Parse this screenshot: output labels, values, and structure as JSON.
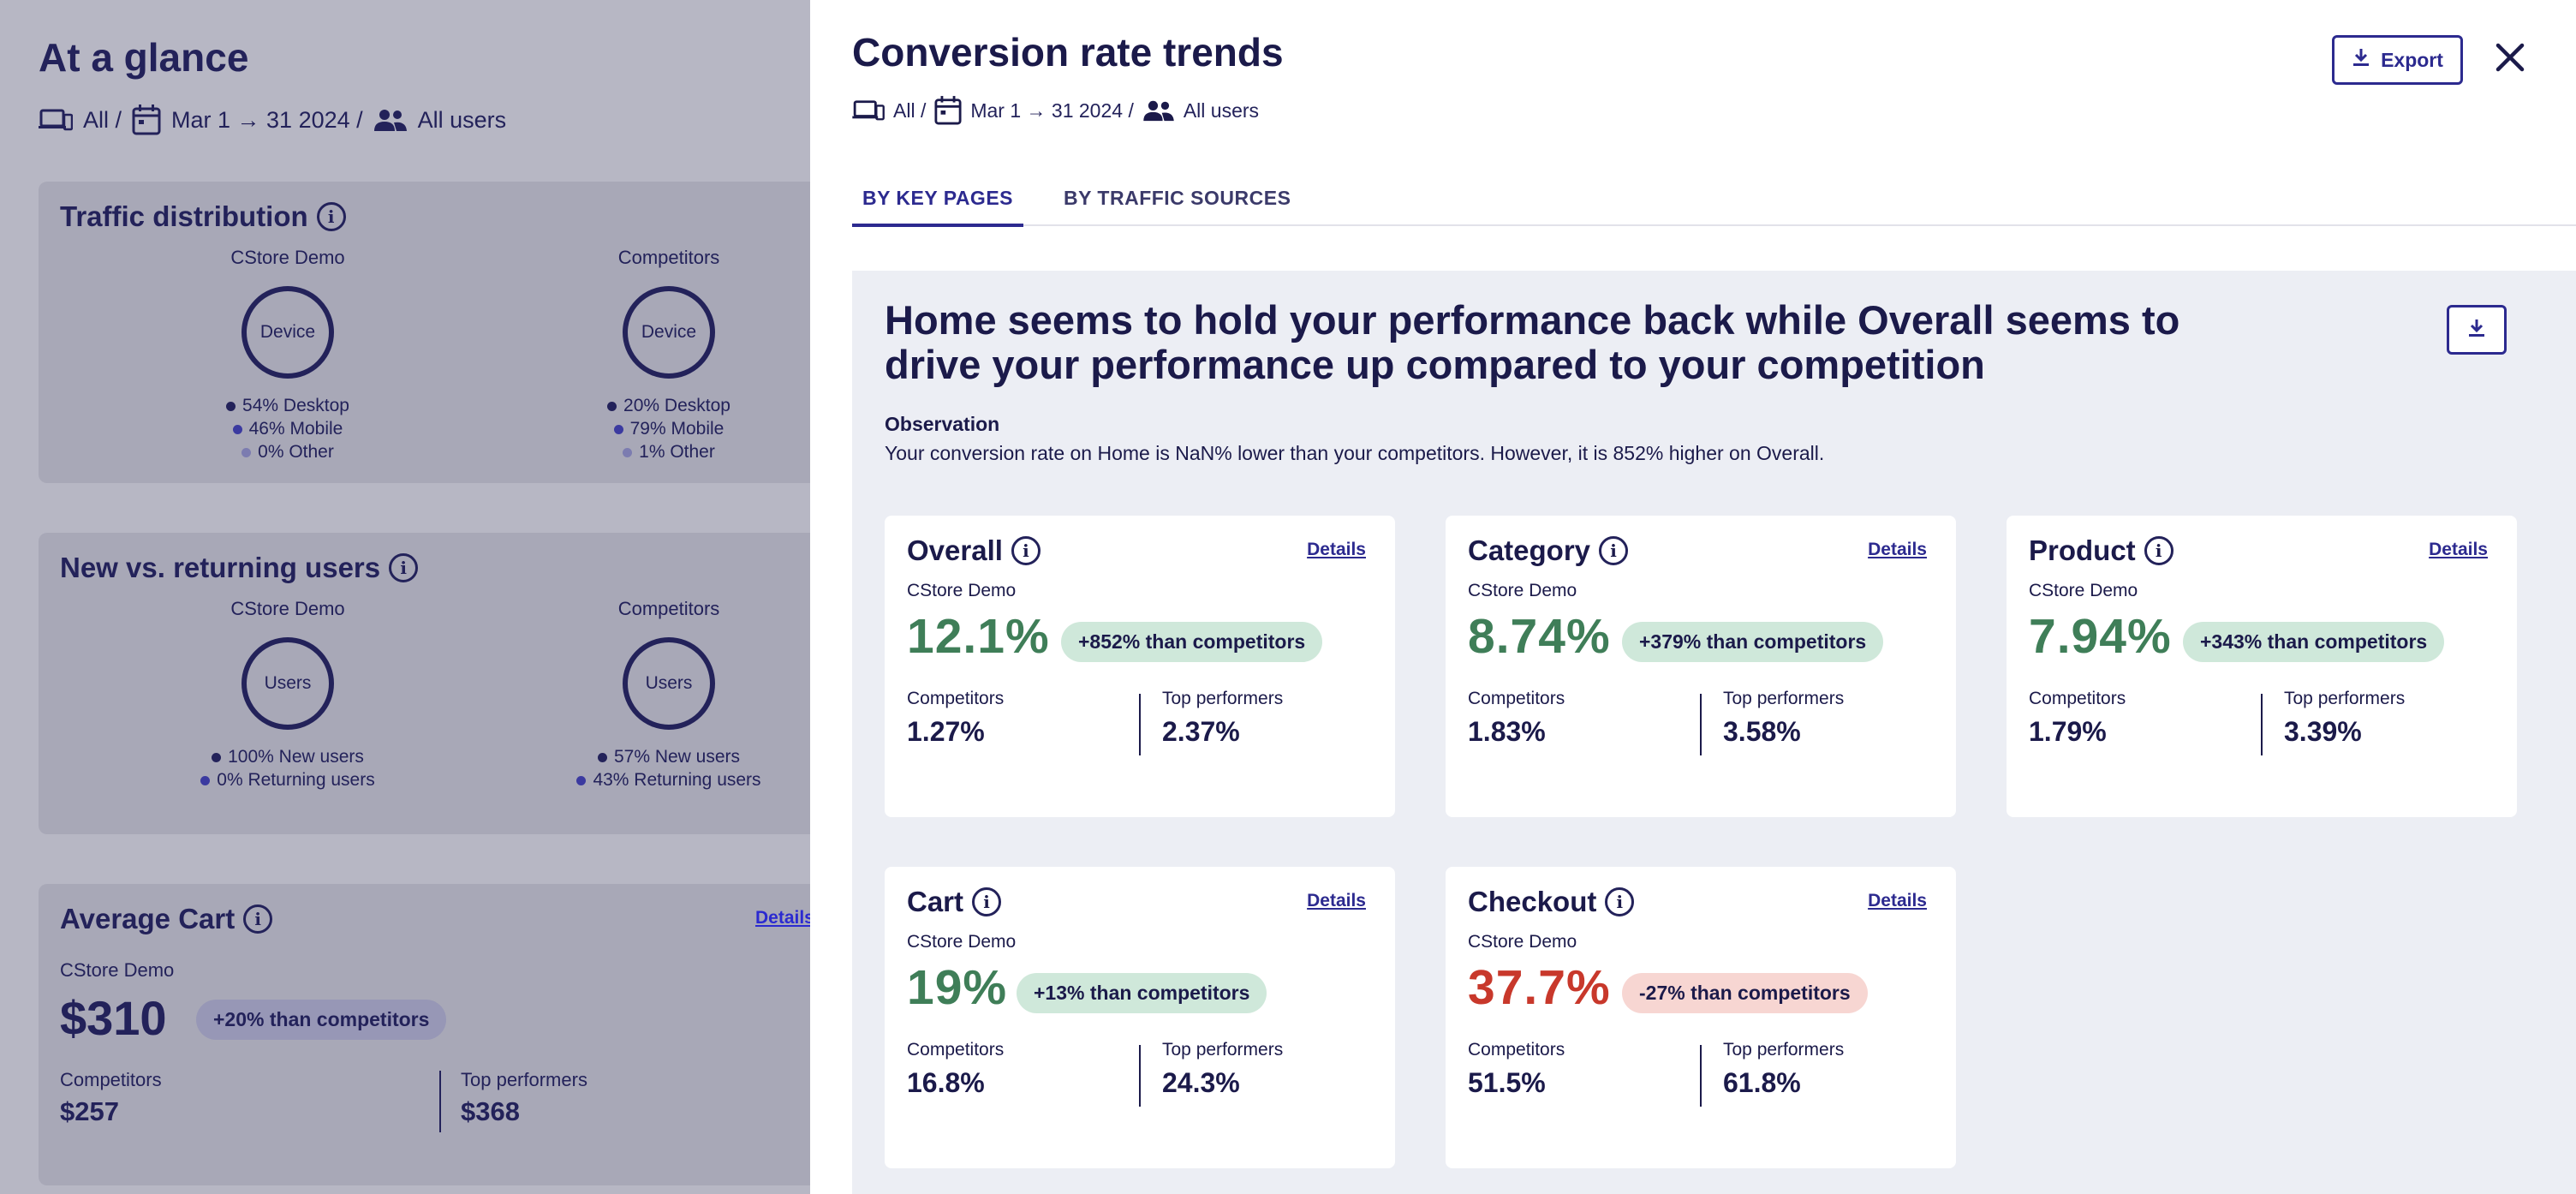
{
  "background": {
    "title": "At a glance",
    "filters": {
      "device": "All /",
      "date": "Mar 1 → 31 2024 /",
      "users": "All users"
    },
    "traffic": {
      "title": "Traffic distribution",
      "cstore": {
        "label": "CStore Demo",
        "ring": "Device",
        "legend": [
          "54% Desktop",
          "46% Mobile",
          "0% Other"
        ]
      },
      "competitors": {
        "label": "Competitors",
        "ring": "Device",
        "legend": [
          "20% Desktop",
          "79% Mobile",
          "1% Other"
        ]
      }
    },
    "new_returning": {
      "title": "New vs. returning users",
      "cstore": {
        "label": "CStore Demo",
        "ring": "Users",
        "legend": [
          "100% New users",
          "0% Returning users"
        ]
      },
      "competitors": {
        "label": "Competitors",
        "ring": "Users",
        "legend": [
          "57% New users",
          "43% Returning users"
        ]
      }
    },
    "average_cart": {
      "title": "Average Cart",
      "details": "Details",
      "site": "CStore Demo",
      "value": "$310",
      "delta": "+20% than competitors",
      "competitors_label": "Competitors",
      "competitors_value": "$257",
      "top_label": "Top performers",
      "top_value": "$368"
    }
  },
  "drawer": {
    "title": "Conversion rate trends",
    "filters": {
      "device": "All /",
      "date": "Mar 1 → 31 2024 /",
      "users": "All users"
    },
    "export_label": "Export",
    "tabs": [
      "BY KEY PAGES",
      "BY TRAFFIC SOURCES"
    ],
    "headline": "Home seems to hold your performance back while Overall seems to drive your performance up compared to your competition",
    "observation_title": "Observation",
    "observation_text": "Your conversion rate on Home is NaN% lower than your competitors. However, it is 852% higher on Overall.",
    "cards": [
      {
        "title": "Overall",
        "details": "Details",
        "site": "CStore Demo",
        "value": "12.1%",
        "delta": "+852% than competitors",
        "competitors_label": "Competitors",
        "competitors_value": "1.27%",
        "top_label": "Top performers",
        "top_value": "2.37%"
      },
      {
        "title": "Category",
        "details": "Details",
        "site": "CStore Demo",
        "value": "8.74%",
        "delta": "+379% than competitors",
        "competitors_label": "Competitors",
        "competitors_value": "1.83%",
        "top_label": "Top performers",
        "top_value": "3.58%"
      },
      {
        "title": "Product",
        "details": "Details",
        "site": "CStore Demo",
        "value": "7.94%",
        "delta": "+343% than competitors",
        "competitors_label": "Competitors",
        "competitors_value": "1.79%",
        "top_label": "Top performers",
        "top_value": "3.39%"
      },
      {
        "title": "Cart",
        "details": "Details",
        "site": "CStore Demo",
        "value": "19%",
        "delta": "+13% than competitors",
        "competitors_label": "Competitors",
        "competitors_value": "16.8%",
        "top_label": "Top performers",
        "top_value": "24.3%"
      },
      {
        "title": "Checkout",
        "details": "Details",
        "site": "CStore Demo",
        "value": "37.7%",
        "delta": "-27% than competitors",
        "competitors_label": "Competitors",
        "competitors_value": "51.5%",
        "top_label": "Top performers",
        "top_value": "61.8%"
      }
    ]
  },
  "colors": {
    "positive": "#3f7e58",
    "negative": "#c8382b",
    "accent": "#2c2a8f"
  }
}
